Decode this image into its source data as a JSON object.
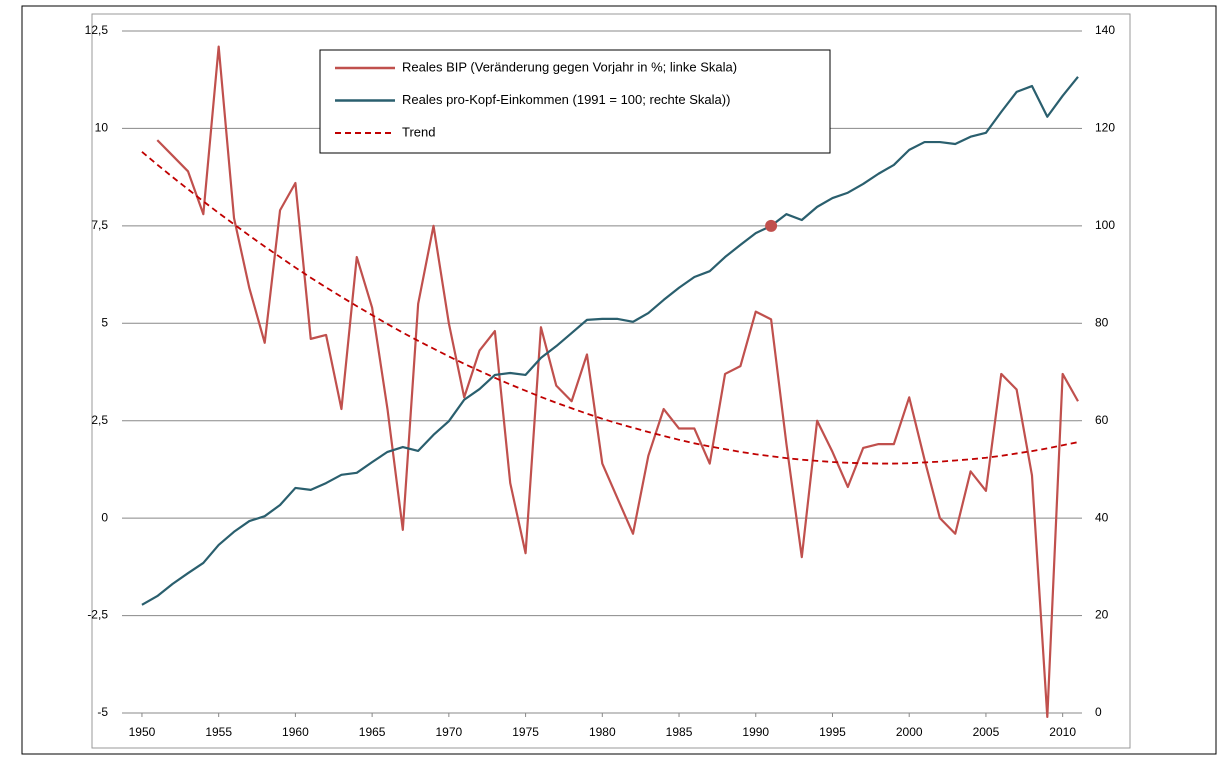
{
  "chart_data": {
    "type": "line",
    "x": [
      1950,
      1951,
      1952,
      1953,
      1954,
      1955,
      1956,
      1957,
      1958,
      1959,
      1960,
      1961,
      1962,
      1963,
      1964,
      1965,
      1966,
      1967,
      1968,
      1969,
      1970,
      1971,
      1972,
      1973,
      1974,
      1975,
      1976,
      1977,
      1978,
      1979,
      1980,
      1981,
      1982,
      1983,
      1984,
      1985,
      1986,
      1987,
      1988,
      1989,
      1990,
      1991,
      1992,
      1993,
      1994,
      1995,
      1996,
      1997,
      1998,
      1999,
      2000,
      2001,
      2002,
      2003,
      2004,
      2005,
      2006,
      2007,
      2008,
      2009,
      2010,
      2011
    ],
    "series": [
      {
        "name": "Reales BIP (Veränderung gegen Vorjahr in %; linke Skala)",
        "color": "#c0504d",
        "dash": false,
        "values": [
          null,
          9.7,
          9.3,
          8.9,
          7.8,
          12.1,
          7.7,
          5.9,
          4.5,
          7.9,
          8.6,
          4.6,
          4.7,
          2.8,
          6.7,
          5.4,
          2.8,
          -0.3,
          5.5,
          7.5,
          5.0,
          3.1,
          4.3,
          4.8,
          0.9,
          -0.9,
          4.9,
          3.4,
          3.0,
          4.2,
          1.4,
          0.5,
          -0.4,
          1.6,
          2.8,
          2.3,
          2.3,
          1.4,
          3.7,
          3.9,
          5.3,
          5.1,
          1.9,
          -1.0,
          2.5,
          1.7,
          0.8,
          1.8,
          1.9,
          1.9,
          3.1,
          1.5,
          0.0,
          -0.4,
          1.2,
          0.7,
          3.7,
          3.3,
          1.1,
          -5.1,
          3.7,
          3.0
        ]
      },
      {
        "name": "Reales pro-Kopf-Einkommen (1991 = 100; rechte Skala))",
        "color": "#2a5f6e",
        "dash": false,
        "axis": "y2",
        "values": [
          22.2,
          24.0,
          26.5,
          28.7,
          30.8,
          34.5,
          37.2,
          39.4,
          40.4,
          42.7,
          46.2,
          45.8,
          47.2,
          48.9,
          49.3,
          51.5,
          53.6,
          54.6,
          53.8,
          57.1,
          59.9,
          64.3,
          66.5,
          69.4,
          69.8,
          69.4,
          72.9,
          75.3,
          78.0,
          80.7,
          80.9,
          80.9,
          80.3,
          82.1,
          84.8,
          87.3,
          89.5,
          90.7,
          93.6,
          96.1,
          98.5,
          100,
          102.4,
          101.2,
          103.9,
          105.7,
          106.8,
          108.6,
          110.7,
          112.5,
          115.6,
          117.2,
          117.2,
          116.8,
          118.3,
          119.1,
          123.4,
          127.5,
          128.7,
          122.4,
          126.7,
          130.6
        ]
      },
      {
        "name": "Trend",
        "color": "#c00000",
        "dash": true,
        "values": [
          9.4,
          9.07,
          8.75,
          8.44,
          8.13,
          7.83,
          7.54,
          7.25,
          6.97,
          6.7,
          6.43,
          6.17,
          5.92,
          5.68,
          5.44,
          5.21,
          4.98,
          4.76,
          4.55,
          4.35,
          4.15,
          3.96,
          3.78,
          3.6,
          3.43,
          3.27,
          3.11,
          2.96,
          2.82,
          2.68,
          2.55,
          2.43,
          2.32,
          2.21,
          2.11,
          2.01,
          1.92,
          1.84,
          1.77,
          1.7,
          1.64,
          1.59,
          1.54,
          1.5,
          1.47,
          1.44,
          1.42,
          1.41,
          1.4,
          1.4,
          1.41,
          1.43,
          1.45,
          1.48,
          1.51,
          1.55,
          1.6,
          1.66,
          1.72,
          1.79,
          1.87,
          1.95
        ]
      }
    ],
    "marker": {
      "x": 1991,
      "value": 100,
      "axis": "y2",
      "color": "#c0504d"
    },
    "xlim": [
      1948.7,
      2011
    ],
    "xticks": [
      1950,
      1955,
      1960,
      1965,
      1970,
      1975,
      1980,
      1985,
      1990,
      1995,
      2000,
      2005,
      2010
    ],
    "ylim": [
      -5,
      12.5
    ],
    "yticks": [
      -5,
      {
        "value": -2.5,
        "label": "-2,5"
      },
      0,
      {
        "value": 2.5,
        "label": "2,5"
      },
      5,
      {
        "value": 7.5,
        "label": "7,5"
      },
      10,
      {
        "value": 12.5,
        "label": "12,5"
      }
    ],
    "y2lim": [
      0,
      140
    ],
    "y2ticks": [
      0,
      20,
      40,
      60,
      80,
      100,
      120,
      140
    ],
    "grid": true
  }
}
